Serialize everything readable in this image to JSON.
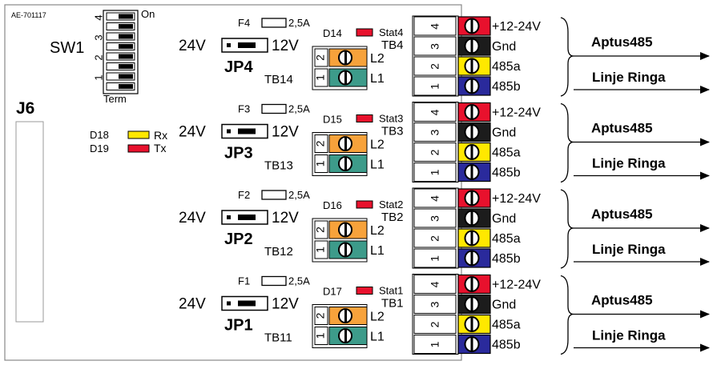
{
  "board_id": "AE-701117",
  "switch": {
    "label": "SW1",
    "on_label": "On",
    "term_label": "Term",
    "positions": [
      "4",
      "3",
      "2",
      "1"
    ]
  },
  "connector": {
    "label": "J6"
  },
  "leds": {
    "rx": {
      "name": "D18",
      "label": "Rx",
      "color": "#ffe800"
    },
    "tx": {
      "name": "D19",
      "label": "Tx",
      "color": "#e8112d"
    }
  },
  "voltage": {
    "left": "24V",
    "right": "12V"
  },
  "tb_pin_labels": {
    "l2": "L2",
    "l1": "L1",
    "pin2": "2",
    "pin1": "1"
  },
  "signals": [
    "+12-24V",
    "Gnd",
    "485a",
    "485b"
  ],
  "screw_colors": [
    "#e8112d",
    "#1c1c1c",
    "#ffe800",
    "#2a2a9c"
  ],
  "tb_colors": {
    "top": "#f7a23b",
    "bottom": "#3d9b8a"
  },
  "pin_numbers": [
    "4",
    "3",
    "2",
    "1"
  ],
  "bus": {
    "aptus": "Aptus485",
    "ringa": "Linje Ringa"
  },
  "channels": [
    {
      "fuse": "F4",
      "fuse_rating": "2,5A",
      "jumper": "JP4",
      "tb_small": "TB14",
      "led": "D14",
      "stat": "Stat4",
      "tb_big": "TB4"
    },
    {
      "fuse": "F3",
      "fuse_rating": "2,5A",
      "jumper": "JP3",
      "tb_small": "TB13",
      "led": "D15",
      "stat": "Stat3",
      "tb_big": "TB3"
    },
    {
      "fuse": "F2",
      "fuse_rating": "2,5A",
      "jumper": "JP2",
      "tb_small": "TB12",
      "led": "D16",
      "stat": "Stat2",
      "tb_big": "TB2"
    },
    {
      "fuse": "F1",
      "fuse_rating": "2,5A",
      "jumper": "JP1",
      "tb_small": "TB11",
      "led": "D17",
      "stat": "Stat1",
      "tb_big": "TB1"
    }
  ]
}
